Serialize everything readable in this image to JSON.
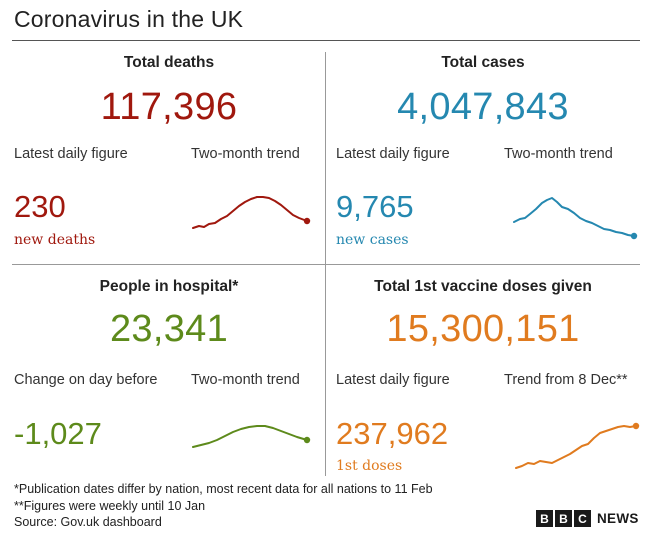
{
  "header": {
    "title": "Coronavirus in the UK"
  },
  "colors": {
    "deaths": "#a0180e",
    "cases": "#2588b0",
    "hospital": "#5d8a1b",
    "vaccine": "#e07b1f"
  },
  "panels": {
    "deaths": {
      "heading": "Total deaths",
      "total": "117,396",
      "left_label": "Latest daily figure",
      "right_label": "Two-month trend",
      "value": "230",
      "sublabel": "new deaths"
    },
    "cases": {
      "heading": "Total cases",
      "total": "4,047,843",
      "left_label": "Latest daily figure",
      "right_label": "Two-month trend",
      "value": "9,765",
      "sublabel": "new cases"
    },
    "hospital": {
      "heading": "People in hospital*",
      "total": "23,341",
      "left_label": "Change on day before",
      "right_label": "Two-month trend",
      "value": "-1,027"
    },
    "vaccine": {
      "heading": "Total 1st vaccine doses given",
      "total": "15,300,151",
      "left_label": "Latest daily figure",
      "right_label": "Trend from 8 Dec**",
      "value": "237,962",
      "sublabel": "1st doses"
    }
  },
  "footnotes": {
    "line1": "*Publication dates differ by nation, most recent data for all nations to 11 Feb",
    "line2": "**Figures were weekly until 10 Jan",
    "line3": "Source: Gov.uk dashboard"
  },
  "brand": {
    "b1": "B",
    "b2": "B",
    "b3": "C",
    "news": "NEWS"
  }
}
